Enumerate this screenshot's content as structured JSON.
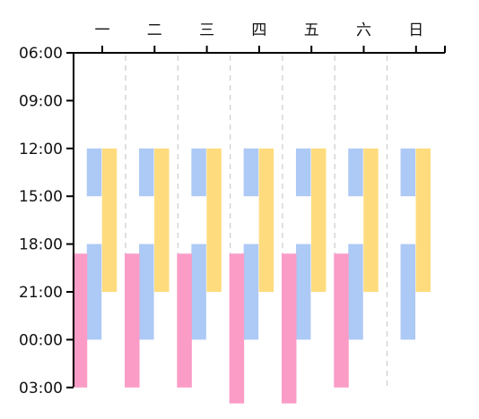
{
  "chart_data": {
    "type": "bar",
    "orientation": "vertical-range",
    "title": "",
    "xlabel": "",
    "ylabel": "",
    "categories": [
      "一",
      "二",
      "三",
      "四",
      "五",
      "六",
      "日"
    ],
    "y_ticks": [
      "06:00",
      "09:00",
      "12:00",
      "15:00",
      "18:00",
      "21:00",
      "00:00",
      "03:00"
    ],
    "y_range_hours": [
      6,
      27
    ],
    "x_axis_position": "top",
    "grid": false,
    "day_separators": "dashed",
    "colors": {
      "blue": "#adc9f5",
      "yellow": "#fedc7e",
      "pink": "#fb9cc7"
    },
    "series": [
      {
        "color_key": "blue",
        "ranges": [
          [
            [
              12,
              15
            ],
            [
              18,
              24
            ]
          ],
          [
            [
              12,
              15
            ],
            [
              18,
              24
            ]
          ],
          [
            [
              12,
              15
            ],
            [
              18,
              24
            ]
          ],
          [
            [
              12,
              15
            ],
            [
              18,
              24
            ]
          ],
          [
            [
              12,
              15
            ],
            [
              18,
              24
            ]
          ],
          [
            [
              12,
              15
            ],
            [
              18,
              24
            ]
          ],
          [
            [
              12,
              15
            ],
            [
              18,
              24
            ]
          ]
        ]
      },
      {
        "color_key": "yellow",
        "ranges": [
          [
            [
              12,
              21
            ]
          ],
          [
            [
              12,
              21
            ]
          ],
          [
            [
              12,
              21
            ]
          ],
          [
            [
              12,
              21
            ]
          ],
          [
            [
              12,
              21
            ]
          ],
          [
            [
              12,
              21
            ]
          ],
          [
            [
              12,
              21
            ]
          ]
        ]
      },
      {
        "color_key": "pink",
        "ranges": [
          [
            [
              18.6,
              27
            ]
          ],
          [
            [
              18.6,
              27
            ]
          ],
          [
            [
              18.6,
              27
            ]
          ],
          [
            [
              18.6,
              28
            ]
          ],
          [
            [
              18.6,
              28
            ]
          ],
          [
            [
              18.6,
              27
            ]
          ],
          []
        ]
      }
    ]
  }
}
